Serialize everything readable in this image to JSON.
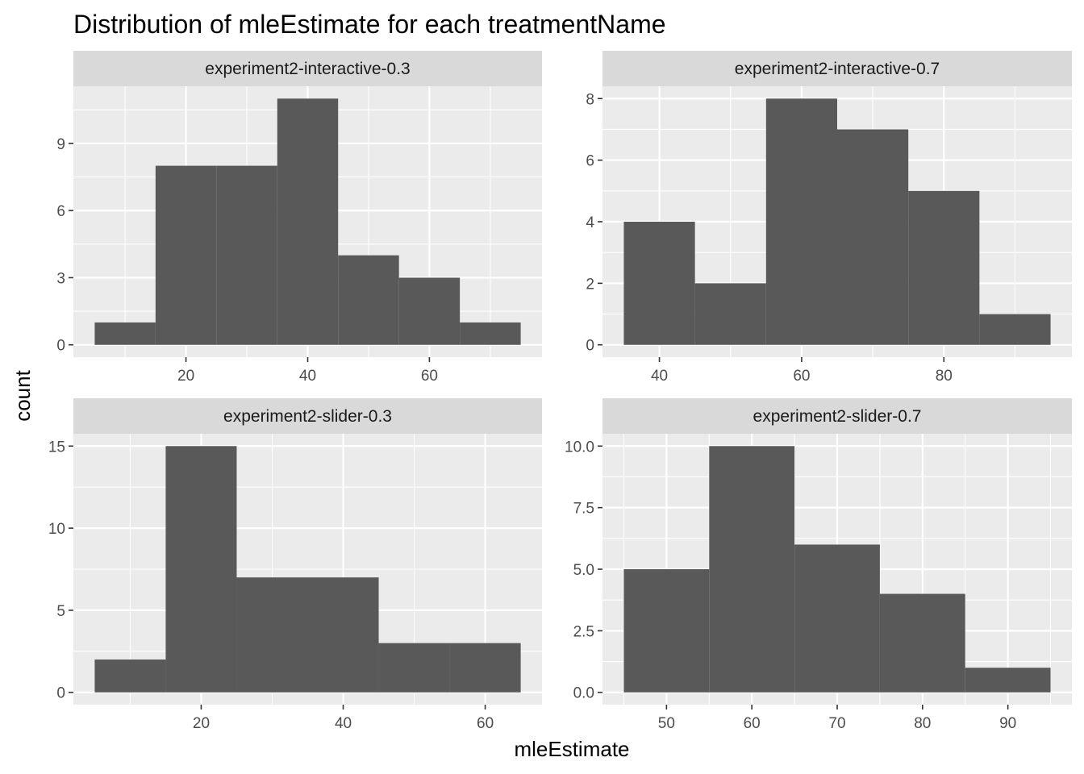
{
  "title": "Distribution of mleEstimate for each treatmentName",
  "xlabel": "mleEstimate",
  "ylabel": "count",
  "colors": {
    "panel_bg": "#EBEBEB",
    "strip_bg": "#D9D9D9",
    "grid_major": "#FFFFFF",
    "bar_fill": "#595959",
    "tick_text": "#4D4D4D",
    "strip_text": "#1A1A1A",
    "title_text": "#000000"
  },
  "chart_data": [
    {
      "type": "bar",
      "facet": "experiment2-interactive-0.3",
      "bins": [
        [
          5,
          15
        ],
        [
          15,
          25
        ],
        [
          25,
          35
        ],
        [
          35,
          45
        ],
        [
          45,
          55
        ],
        [
          55,
          65
        ],
        [
          65,
          75
        ]
      ],
      "values": [
        1,
        8,
        8,
        11,
        4,
        3,
        1
      ],
      "xlim": [
        1.5,
        78.5
      ],
      "ylim": [
        -0.55,
        11.55
      ],
      "xticks": [
        20,
        40,
        60
      ],
      "xtick_labels": [
        "20",
        "40",
        "60"
      ],
      "yticks": [
        0,
        3,
        6,
        9
      ],
      "ytick_labels": [
        "0",
        "3",
        "6",
        "9"
      ],
      "grid": true
    },
    {
      "type": "bar",
      "facet": "experiment2-interactive-0.7",
      "bins": [
        [
          35,
          45
        ],
        [
          45,
          55
        ],
        [
          55,
          65
        ],
        [
          65,
          75
        ],
        [
          75,
          85
        ],
        [
          85,
          95
        ]
      ],
      "values": [
        4,
        2,
        8,
        7,
        5,
        1
      ],
      "xlim": [
        32,
        98
      ],
      "ylim": [
        -0.4,
        8.4
      ],
      "xticks": [
        40,
        60,
        80
      ],
      "xtick_labels": [
        "40",
        "60",
        "80"
      ],
      "yticks": [
        0,
        2,
        4,
        6,
        8
      ],
      "ytick_labels": [
        "0",
        "2",
        "4",
        "6",
        "8"
      ],
      "grid": true
    },
    {
      "type": "bar",
      "facet": "experiment2-slider-0.3",
      "bins": [
        [
          5,
          15
        ],
        [
          15,
          25
        ],
        [
          25,
          35
        ],
        [
          35,
          45
        ],
        [
          45,
          55
        ],
        [
          55,
          65
        ]
      ],
      "values": [
        2,
        15,
        7,
        7,
        3,
        3
      ],
      "xlim": [
        2,
        68
      ],
      "ylim": [
        -0.75,
        15.75
      ],
      "xticks": [
        20,
        40,
        60
      ],
      "xtick_labels": [
        "20",
        "40",
        "60"
      ],
      "yticks": [
        0,
        5,
        10,
        15
      ],
      "ytick_labels": [
        "0",
        "5",
        "10",
        "15"
      ],
      "grid": true
    },
    {
      "type": "bar",
      "facet": "experiment2-slider-0.7",
      "bins": [
        [
          45,
          55
        ],
        [
          55,
          65
        ],
        [
          65,
          75
        ],
        [
          75,
          85
        ],
        [
          85,
          95
        ]
      ],
      "values": [
        5,
        10,
        6,
        4,
        1
      ],
      "xlim": [
        42.5,
        97.5
      ],
      "ylim": [
        -0.5,
        10.5
      ],
      "xticks": [
        50,
        60,
        70,
        80,
        90
      ],
      "xtick_labels": [
        "50",
        "60",
        "70",
        "80",
        "90"
      ],
      "yticks": [
        0,
        2.5,
        5,
        7.5,
        10
      ],
      "ytick_labels": [
        "0.0",
        "2.5",
        "5.0",
        "7.5",
        "10.0"
      ],
      "grid": true
    }
  ]
}
